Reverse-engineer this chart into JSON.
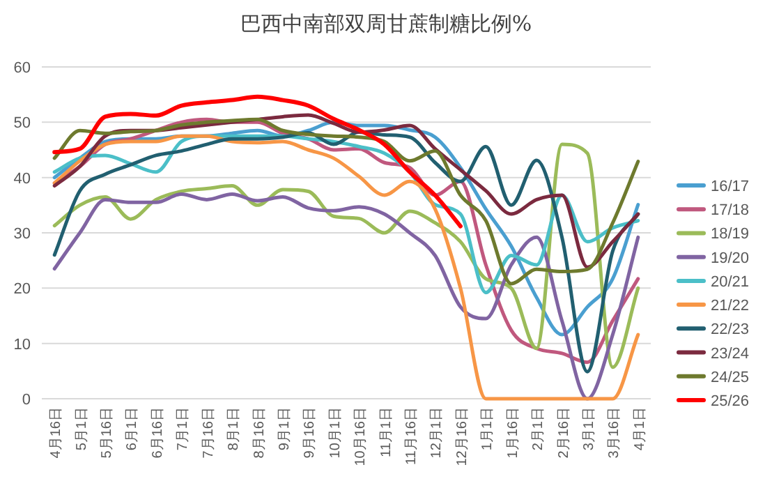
{
  "chart_data": {
    "type": "line",
    "title": "巴西中南部双周甘蔗制糖比例%",
    "categories": [
      "4月16日",
      "5月1日",
      "5月16日",
      "6月1日",
      "6月16日",
      "7月1日",
      "7月16日",
      "8月1日",
      "8月16日",
      "9月1日",
      "9月16日",
      "10月1日",
      "10月16日",
      "11月1日",
      "11月16日",
      "12月1日",
      "12月16日",
      "1月1日",
      "1月16日",
      "2月1日",
      "2月16日",
      "3月1日",
      "3月16日",
      "4月1日"
    ],
    "ylim": [
      0,
      60
    ],
    "yticks": [
      0,
      10,
      20,
      30,
      40,
      50,
      60
    ],
    "grid": "y",
    "legend": "right",
    "series": [
      {
        "name": "16/17",
        "color": "#4a9fd0",
        "values": [
          40,
          43.5,
          46.5,
          47,
          47,
          47.5,
          47.5,
          48,
          48.5,
          47.5,
          48.5,
          50,
          49.4,
          49.4,
          48.6,
          47.3,
          41.8,
          34.3,
          27.6,
          18.3,
          11.6,
          16.6,
          21.7,
          35.1
        ]
      },
      {
        "name": "17/18",
        "color": "#c0587e",
        "values": [
          39,
          42,
          46,
          47,
          48.5,
          50,
          50.5,
          50,
          50,
          48,
          47,
          45,
          45.2,
          42.7,
          41.8,
          36.8,
          39.3,
          24.2,
          12.4,
          9.1,
          8.2,
          6.6,
          14.1,
          21.7
        ]
      },
      {
        "name": "18/19",
        "color": "#9bbb59",
        "values": [
          31.3,
          35,
          36.5,
          32.5,
          36,
          37.5,
          38,
          38.5,
          35,
          37.8,
          37.5,
          33,
          32.6,
          30,
          33.9,
          31.8,
          28.4,
          21.7,
          20,
          9.1,
          46,
          44.4,
          5.7,
          20
        ]
      },
      {
        "name": "19/20",
        "color": "#8064a2",
        "values": [
          23.5,
          30,
          36,
          35.5,
          35.5,
          37,
          36,
          37,
          35.8,
          36.5,
          34.5,
          34,
          34.7,
          33.4,
          30,
          25.9,
          16.6,
          14.5,
          24.2,
          29.2,
          14.1,
          0,
          11.6,
          29.2
        ]
      },
      {
        "name": "20/21",
        "color": "#4bbfc8",
        "values": [
          41,
          43.5,
          44,
          42.5,
          41,
          46.5,
          47.5,
          47.5,
          47.5,
          47.5,
          47,
          46.5,
          45.6,
          44.4,
          41,
          35.1,
          33.4,
          19.2,
          25.9,
          24.2,
          36.8,
          28.4,
          30.9,
          32.2
        ]
      },
      {
        "name": "21/22",
        "color": "#f79646",
        "values": [
          39,
          43,
          46,
          46.5,
          46.5,
          47.5,
          47.5,
          46.5,
          46.3,
          46.5,
          45,
          43.5,
          40.2,
          36.8,
          39.3,
          34.3,
          20,
          0,
          0,
          0,
          0,
          0,
          0,
          11.6
        ]
      },
      {
        "name": "22/23",
        "color": "#215f70",
        "values": [
          26,
          37.6,
          40.6,
          42.3,
          44,
          44.8,
          46,
          47,
          47,
          47.3,
          48.1,
          46,
          48.2,
          47.7,
          47.3,
          42.7,
          39.3,
          45.6,
          35,
          43.1,
          29.2,
          4.9,
          26.7,
          33.4
        ]
      },
      {
        "name": "23/24",
        "color": "#7b2a3f",
        "values": [
          38.5,
          42,
          47.5,
          48.5,
          48.5,
          49,
          49.5,
          50,
          50.5,
          51,
          51.3,
          49.8,
          48.2,
          48.6,
          49.4,
          45.2,
          41.4,
          37.6,
          33.4,
          36,
          36.8,
          23.8,
          28.4,
          33.4
        ]
      },
      {
        "name": "24/25",
        "color": "#6e7a2e",
        "values": [
          43.5,
          48.5,
          48,
          48.3,
          48.5,
          49.5,
          50,
          50.3,
          50.5,
          48.5,
          47.8,
          47.5,
          47.3,
          46.5,
          43,
          44.8,
          36.8,
          32.2,
          20.8,
          23.4,
          23,
          23.4,
          31.8,
          42.9
        ]
      },
      {
        "name": "25/26",
        "color": "#ff0000",
        "values": [
          44.6,
          45.2,
          51,
          51.5,
          51.2,
          53,
          53.6,
          54,
          54.6,
          54,
          53,
          50.6,
          48.6,
          46,
          41,
          36.8,
          31.2,
          null,
          null,
          null,
          null,
          null,
          null,
          null
        ]
      }
    ]
  }
}
